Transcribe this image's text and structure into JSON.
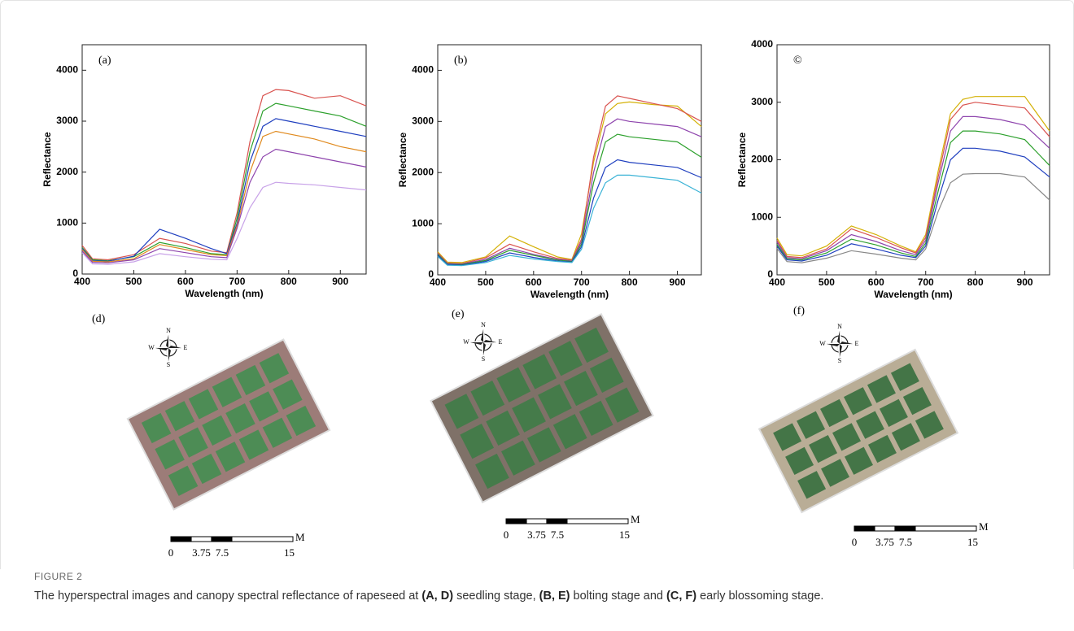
{
  "chart_data": [
    {
      "type": "line",
      "label": "(a)",
      "xlabel": "Wavelength (nm)",
      "ylabel": "Reflectance",
      "x": [
        400,
        420,
        450,
        500,
        550,
        600,
        650,
        680,
        700,
        725,
        750,
        775,
        800,
        850,
        900,
        950
      ],
      "xlim": [
        400,
        950
      ],
      "xticks": [
        400,
        500,
        600,
        700,
        800,
        900
      ],
      "ylim": [
        0,
        4500
      ],
      "yticks": [
        0,
        1000,
        2000,
        3000,
        4000
      ],
      "series": [
        {
          "color": "#d9534f",
          "values": [
            560,
            300,
            280,
            380,
            700,
            600,
            450,
            420,
            1200,
            2600,
            3500,
            3620,
            3600,
            3450,
            3500,
            3300
          ]
        },
        {
          "color": "#2ca02c",
          "values": [
            520,
            280,
            260,
            340,
            620,
            520,
            400,
            380,
            1100,
            2400,
            3200,
            3350,
            3300,
            3200,
            3100,
            2900
          ]
        },
        {
          "color": "#1f3fbf",
          "values": [
            500,
            260,
            250,
            350,
            880,
            700,
            500,
            400,
            1000,
            2200,
            2900,
            3050,
            3000,
            2900,
            2800,
            2700
          ]
        },
        {
          "color": "#e08a1e",
          "values": [
            480,
            250,
            240,
            300,
            580,
            480,
            380,
            360,
            950,
            2000,
            2700,
            2800,
            2750,
            2650,
            2500,
            2400
          ]
        },
        {
          "color": "#8e44ad",
          "values": [
            450,
            230,
            220,
            280,
            500,
            420,
            340,
            320,
            900,
            1800,
            2300,
            2450,
            2400,
            2300,
            2200,
            2100
          ]
        },
        {
          "color": "#c8a2e8",
          "values": [
            420,
            200,
            190,
            240,
            400,
            340,
            290,
            280,
            700,
            1300,
            1700,
            1800,
            1780,
            1750,
            1700,
            1650
          ]
        }
      ]
    },
    {
      "type": "line",
      "label": "(b)",
      "xlabel": "Wavelength (nm)",
      "ylabel": "Reflectance",
      "x": [
        400,
        420,
        450,
        500,
        550,
        600,
        650,
        680,
        700,
        725,
        750,
        775,
        800,
        850,
        900,
        950
      ],
      "xlim": [
        400,
        950
      ],
      "xticks": [
        400,
        500,
        600,
        700,
        800,
        900
      ],
      "ylim": [
        0,
        4500
      ],
      "yticks": [
        0,
        1000,
        2000,
        3000,
        4000
      ],
      "series": [
        {
          "color": "#d4b106",
          "values": [
            450,
            250,
            240,
            350,
            760,
            550,
            350,
            300,
            800,
            2200,
            3150,
            3350,
            3380,
            3330,
            3300,
            2900
          ]
        },
        {
          "color": "#d9534f",
          "values": [
            430,
            230,
            220,
            330,
            600,
            450,
            320,
            290,
            700,
            2300,
            3300,
            3500,
            3450,
            3350,
            3250,
            3000
          ]
        },
        {
          "color": "#8e44ad",
          "values": [
            410,
            220,
            210,
            300,
            520,
            400,
            300,
            270,
            650,
            2000,
            2900,
            3050,
            3000,
            2950,
            2900,
            2700
          ]
        },
        {
          "color": "#2ca02c",
          "values": [
            400,
            210,
            200,
            280,
            480,
            380,
            290,
            260,
            600,
            1800,
            2600,
            2750,
            2700,
            2650,
            2600,
            2300
          ]
        },
        {
          "color": "#1f3fbf",
          "values": [
            380,
            200,
            190,
            260,
            430,
            340,
            270,
            250,
            550,
            1500,
            2100,
            2250,
            2200,
            2150,
            2100,
            1900
          ]
        },
        {
          "color": "#3bb3d6",
          "values": [
            360,
            190,
            180,
            240,
            380,
            310,
            260,
            240,
            500,
            1300,
            1800,
            1950,
            1950,
            1900,
            1850,
            1600
          ]
        }
      ]
    },
    {
      "type": "line",
      "label": "©",
      "xlabel": "Wavelength (nm)",
      "ylabel": "Reflectance",
      "x": [
        400,
        420,
        450,
        500,
        550,
        600,
        650,
        680,
        700,
        725,
        750,
        775,
        800,
        850,
        900,
        950
      ],
      "xlim": [
        400,
        950
      ],
      "xticks": [
        400,
        500,
        600,
        700,
        800,
        900
      ],
      "ylim": [
        0,
        4000
      ],
      "yticks": [
        0,
        1000,
        2000,
        3000,
        4000
      ],
      "series": [
        {
          "color": "#d4b106",
          "values": [
            640,
            350,
            330,
            500,
            850,
            700,
            500,
            400,
            700,
            1800,
            2800,
            3050,
            3100,
            3100,
            3100,
            2500
          ]
        },
        {
          "color": "#d9534f",
          "values": [
            600,
            320,
            300,
            450,
            800,
            650,
            470,
            380,
            650,
            1700,
            2700,
            2950,
            3000,
            2950,
            2900,
            2400
          ]
        },
        {
          "color": "#8e44ad",
          "values": [
            570,
            300,
            280,
            420,
            700,
            580,
            420,
            350,
            600,
            1600,
            2500,
            2750,
            2750,
            2700,
            2600,
            2200
          ]
        },
        {
          "color": "#2ca02c",
          "values": [
            530,
            280,
            260,
            380,
            620,
            520,
            380,
            320,
            550,
            1450,
            2300,
            2500,
            2500,
            2450,
            2350,
            1900
          ]
        },
        {
          "color": "#1f3fbf",
          "values": [
            500,
            260,
            240,
            340,
            540,
            450,
            340,
            300,
            500,
            1300,
            2000,
            2200,
            2200,
            2150,
            2050,
            1700
          ]
        },
        {
          "color": "#888888",
          "values": [
            460,
            230,
            210,
            290,
            420,
            360,
            290,
            260,
            450,
            1100,
            1600,
            1750,
            1760,
            1760,
            1700,
            1300
          ]
        }
      ]
    }
  ],
  "maps": [
    {
      "label": "(d)",
      "compass": [
        "N",
        "S",
        "W",
        "E"
      ],
      "scale": [
        "0",
        "3.75",
        "7.5",
        "15"
      ],
      "unit": "M"
    },
    {
      "label": "(e)",
      "compass": [
        "N",
        "S",
        "W",
        "E"
      ],
      "scale": [
        "0",
        "3.75",
        "7.5",
        "15"
      ],
      "unit": "M"
    },
    {
      "label": "(f)",
      "compass": [
        "N",
        "S",
        "W",
        "E"
      ],
      "scale": [
        "0",
        "3.75",
        "7.5",
        "15"
      ],
      "unit": "M"
    }
  ],
  "caption": {
    "figure": "FIGURE 2",
    "parts": [
      "The hyperspectral images and canopy spectral reflectance of rapeseed at",
      "(A, D)",
      "seedling stage,",
      "(B, E)",
      "bolting stage and",
      "(C, F)",
      "early blossoming stage."
    ]
  }
}
